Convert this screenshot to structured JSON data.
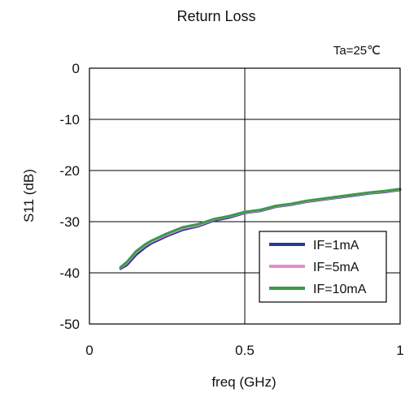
{
  "chart_data": {
    "type": "line",
    "title": "Return Loss",
    "annotation": "Ta=25℃",
    "xlabel": "freq (GHz)",
    "ylabel": "S11 (dB)",
    "xlim": [
      0,
      1
    ],
    "ylim": [
      -50,
      0
    ],
    "xticks": [
      0,
      0.5,
      1
    ],
    "xtick_labels": [
      "0",
      "0.5",
      "1"
    ],
    "yticks": [
      0,
      -10,
      -20,
      -30,
      -40,
      -50
    ],
    "ytick_labels": [
      "0",
      "-10",
      "-20",
      "-30",
      "-40",
      "-50"
    ],
    "grid": true,
    "legend_position": "bottom-right",
    "series": [
      {
        "name": "IF=1mA",
        "color": "#2b3990",
        "x": [
          0.1,
          0.12,
          0.15,
          0.18,
          0.2,
          0.25,
          0.3,
          0.35,
          0.4,
          0.45,
          0.5,
          0.55,
          0.6,
          0.65,
          0.7,
          0.75,
          0.8,
          0.85,
          0.9,
          0.95,
          1.0
        ],
        "y": [
          -39.2,
          -38.5,
          -36.5,
          -35.0,
          -34.2,
          -32.8,
          -31.6,
          -30.9,
          -29.8,
          -29.2,
          -28.3,
          -27.9,
          -27.1,
          -26.7,
          -26.1,
          -25.7,
          -25.3,
          -24.9,
          -24.5,
          -24.2,
          -23.8
        ]
      },
      {
        "name": "IF=5mA",
        "color": "#e58fc7",
        "x": [
          0.1,
          0.12,
          0.15,
          0.18,
          0.2,
          0.25,
          0.3,
          0.35,
          0.4,
          0.45,
          0.5,
          0.55,
          0.6,
          0.65,
          0.7,
          0.75,
          0.8,
          0.85,
          0.9,
          0.95,
          1.0
        ],
        "y": [
          -39.0,
          -38.1,
          -36.0,
          -34.6,
          -33.9,
          -32.5,
          -31.3,
          -30.7,
          -29.6,
          -29.0,
          -28.2,
          -27.8,
          -27.0,
          -26.6,
          -26.0,
          -25.6,
          -25.2,
          -24.8,
          -24.4,
          -24.1,
          -23.7
        ]
      },
      {
        "name": "IF=10mA",
        "color": "#3a9a4a",
        "x": [
          0.1,
          0.12,
          0.15,
          0.18,
          0.2,
          0.25,
          0.3,
          0.35,
          0.4,
          0.45,
          0.5,
          0.55,
          0.6,
          0.65,
          0.7,
          0.75,
          0.8,
          0.85,
          0.9,
          0.95,
          1.0
        ],
        "y": [
          -38.9,
          -37.9,
          -35.8,
          -34.4,
          -33.7,
          -32.3,
          -31.1,
          -30.5,
          -29.5,
          -28.9,
          -28.1,
          -27.7,
          -26.9,
          -26.5,
          -25.9,
          -25.5,
          -25.1,
          -24.7,
          -24.3,
          -24.0,
          -23.6
        ]
      }
    ]
  }
}
